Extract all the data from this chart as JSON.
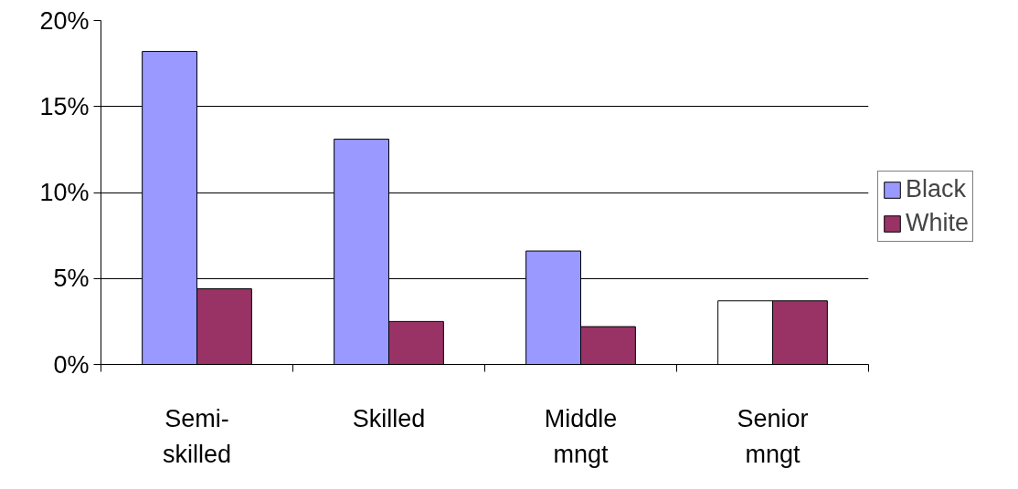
{
  "chart_data": {
    "type": "bar",
    "categories": [
      "Semi-\nskilled",
      "Skilled",
      "Middle\nmngt",
      "Senior\nmngt"
    ],
    "series": [
      {
        "name": "Black",
        "color": "#9999ff",
        "colors": [
          "#9999ff",
          "#9999ff",
          "#9999ff",
          "#ffffff"
        ],
        "values": [
          18.2,
          13.1,
          6.6,
          3.7
        ]
      },
      {
        "name": "White",
        "color": "#993366",
        "values": [
          4.4,
          2.5,
          2.2,
          3.7
        ]
      }
    ],
    "ylim": [
      0,
      20
    ],
    "yticks": [
      {
        "value": 0,
        "label": "0%"
      },
      {
        "value": 5,
        "label": "5%"
      },
      {
        "value": 10,
        "label": "10%"
      },
      {
        "value": 15,
        "label": "15%"
      },
      {
        "value": 20,
        "label": "20%"
      }
    ],
    "grid": "y",
    "legend": "right"
  }
}
